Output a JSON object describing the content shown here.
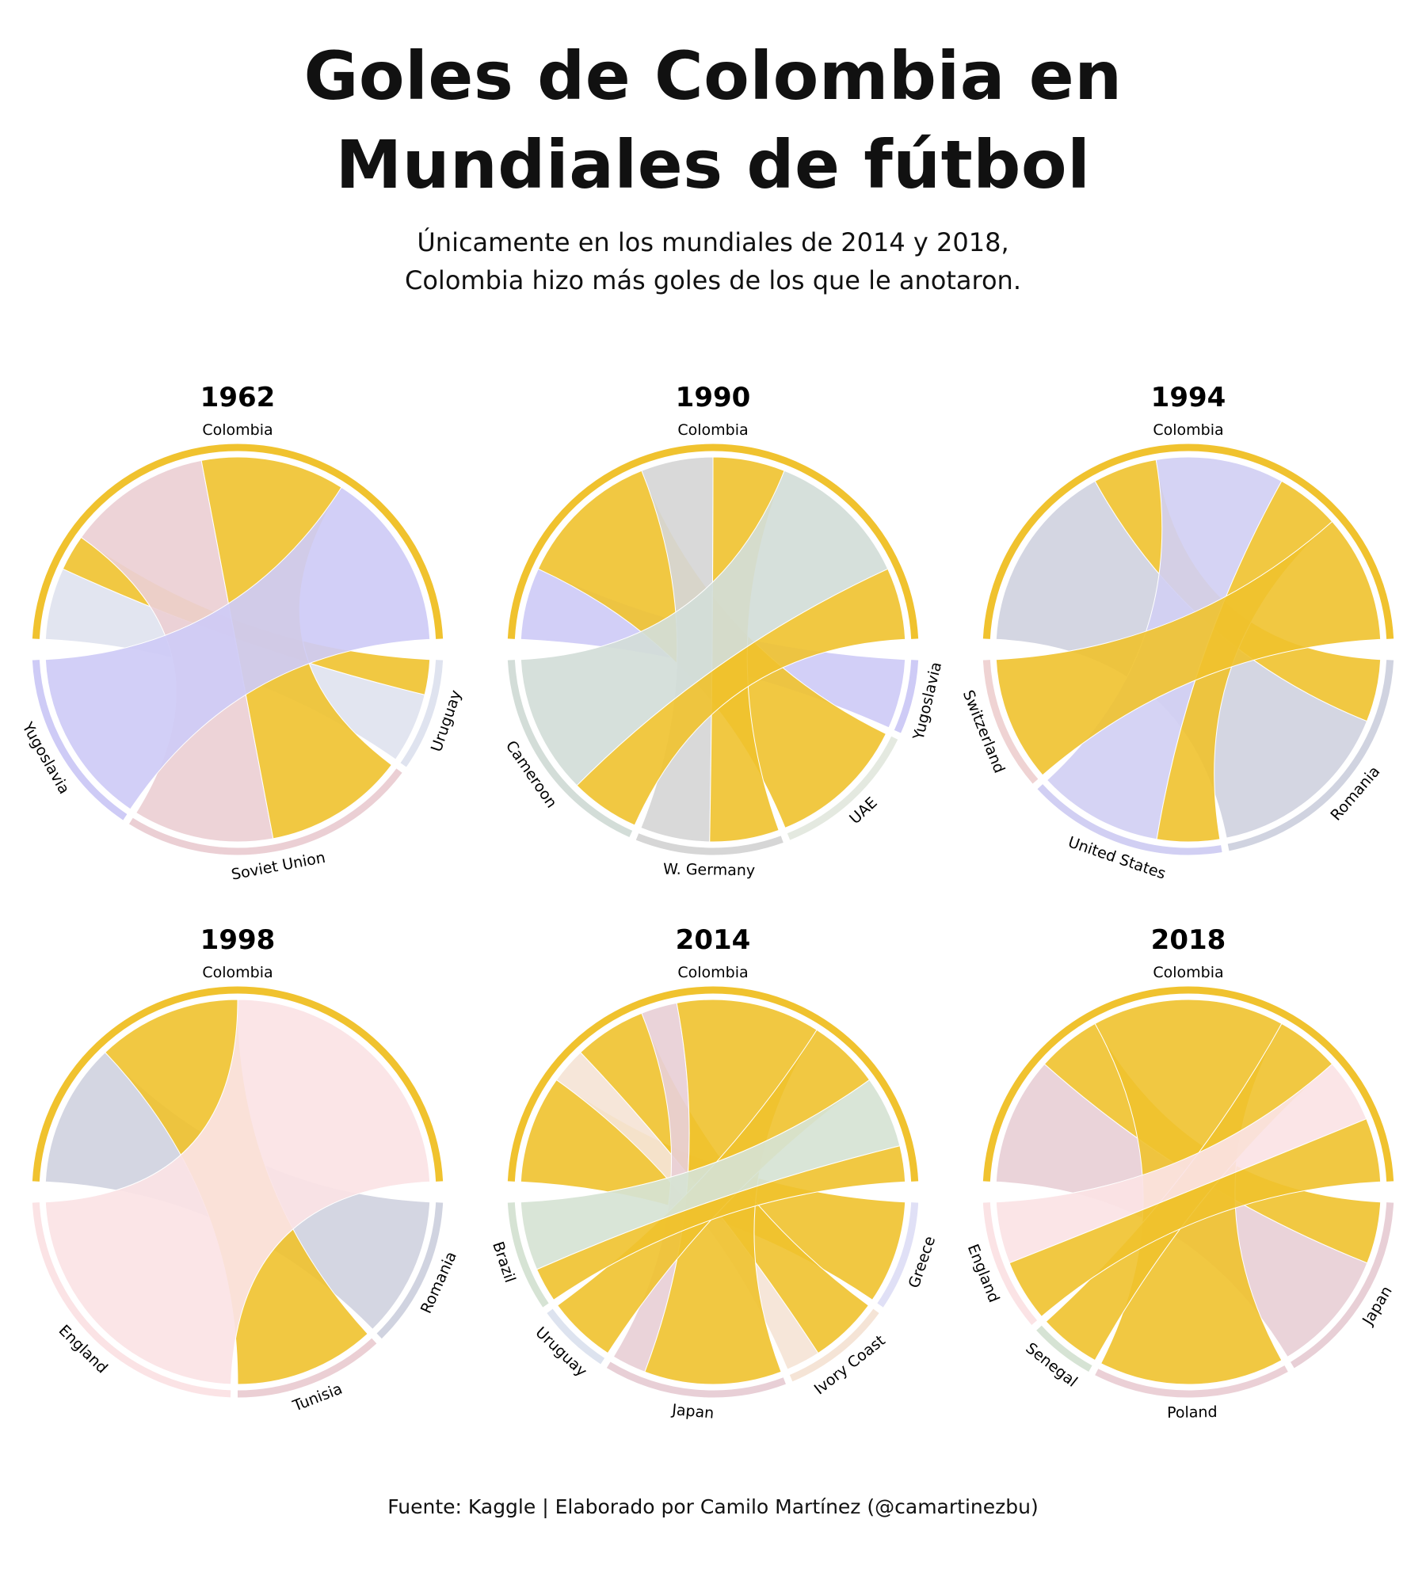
{
  "title_line1": "Goles de Colombia en",
  "title_line2": "Mundiales de fútbol",
  "subtitle_line1": "Únicamente en los mundiales de 2014 y 2018,",
  "subtitle_line2": "Colombia hizo más goles de los que le anotaron.",
  "source": "Fuente: Kaggle | Elaborado por Camilo Martínez (@camartinezbu)",
  "colors": {
    "colombia": "#f0c22e"
  },
  "chart_data": [
    {
      "type": "chord",
      "year": "1962",
      "focus": "Colombia",
      "teams": [
        {
          "name": "Uruguay",
          "scored": 1,
          "conceded": 2,
          "color": "#dfe3ef"
        },
        {
          "name": "Soviet Union",
          "scored": 4,
          "conceded": 4,
          "color": "#ebcfd4"
        },
        {
          "name": "Yugoslavia",
          "scored": 0,
          "conceded": 5,
          "color": "#cecbf6"
        }
      ]
    },
    {
      "type": "chord",
      "year": "1990",
      "focus": "Colombia",
      "teams": [
        {
          "name": "Yugoslavia",
          "scored": 0,
          "conceded": 1,
          "color": "#cecbf6"
        },
        {
          "name": "UAE",
          "scored": 2,
          "conceded": 0,
          "color": "#e4e9e0"
        },
        {
          "name": "W. Germany",
          "scored": 1,
          "conceded": 1,
          "color": "#d6d6d6"
        },
        {
          "name": "Cameroon",
          "scored": 1,
          "conceded": 2,
          "color": "#d3ddd8"
        }
      ]
    },
    {
      "type": "chord",
      "year": "1994",
      "focus": "Colombia",
      "teams": [
        {
          "name": "Romania",
          "scored": 1,
          "conceded": 3,
          "color": "#d0d3e0"
        },
        {
          "name": "United States",
          "scored": 1,
          "conceded": 2,
          "color": "#d1cff3"
        },
        {
          "name": "Switzerland",
          "scored": 2,
          "conceded": 0,
          "color": "#efd3d3"
        }
      ]
    },
    {
      "type": "chord",
      "year": "1998",
      "focus": "Colombia",
      "teams": [
        {
          "name": "Romania",
          "scored": 0,
          "conceded": 1,
          "color": "#d0d3e0"
        },
        {
          "name": "Tunisia",
          "scored": 1,
          "conceded": 0,
          "color": "#ebcfd4"
        },
        {
          "name": "England",
          "scored": 0,
          "conceded": 2,
          "color": "#fbe3e5"
        }
      ]
    },
    {
      "type": "chord",
      "year": "2014",
      "focus": "Colombia",
      "teams": [
        {
          "name": "Greece",
          "scored": 3,
          "conceded": 0,
          "color": "#e0e0f6"
        },
        {
          "name": "Ivory Coast",
          "scored": 2,
          "conceded": 1,
          "color": "#f5e4d6"
        },
        {
          "name": "Japan",
          "scored": 4,
          "conceded": 1,
          "color": "#e8cfd6"
        },
        {
          "name": "Uruguay",
          "scored": 2,
          "conceded": 0,
          "color": "#dde3ef"
        },
        {
          "name": "Brazil",
          "scored": 1,
          "conceded": 2,
          "color": "#d6e3d4"
        }
      ]
    },
    {
      "type": "chord",
      "year": "2018",
      "focus": "Colombia",
      "teams": [
        {
          "name": "Japan",
          "scored": 1,
          "conceded": 2,
          "color": "#e8cfd6"
        },
        {
          "name": "Poland",
          "scored": 3,
          "conceded": 0,
          "color": "#ebd0d6"
        },
        {
          "name": "Senegal",
          "scored": 1,
          "conceded": 0,
          "color": "#d6e3d4"
        },
        {
          "name": "England",
          "scored": 1,
          "conceded": 1,
          "color": "#fbe3e5"
        }
      ]
    }
  ]
}
